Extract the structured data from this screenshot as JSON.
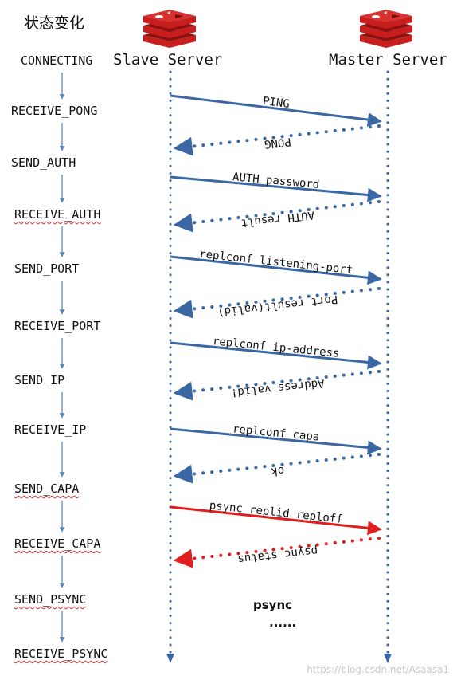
{
  "title": "状态变化",
  "slave_label": "Slave Server",
  "master_label": "Master Server",
  "states": [
    {
      "label": "CONNECTING",
      "wavy": false
    },
    {
      "label": "RECEIVE_PONG",
      "wavy": false
    },
    {
      "label": "SEND_AUTH",
      "wavy": false
    },
    {
      "label": "RECEIVE_AUTH",
      "wavy": true
    },
    {
      "label": "SEND_PORT",
      "wavy": false
    },
    {
      "label": "RECEIVE_PORT",
      "wavy": false
    },
    {
      "label": "SEND_IP",
      "wavy": false
    },
    {
      "label": "RECEIVE_IP",
      "wavy": false
    },
    {
      "label": "SEND_CAPA",
      "wavy": true
    },
    {
      "label": "RECEIVE_CAPA",
      "wavy": true
    },
    {
      "label": "SEND_PSYNC",
      "wavy": true
    },
    {
      "label": "RECEIVE_PSYNC",
      "wavy": true
    }
  ],
  "messages": [
    {
      "label": "PING",
      "direction": "to-master",
      "style": "solid",
      "color": "#3a68a4"
    },
    {
      "label": "PONG",
      "direction": "to-slave",
      "style": "dotted",
      "color": "#3a68a4"
    },
    {
      "label": "AUTH password",
      "direction": "to-master",
      "style": "solid",
      "color": "#3a68a4"
    },
    {
      "label": "AUTH result",
      "direction": "to-slave",
      "style": "dotted",
      "color": "#3a68a4"
    },
    {
      "label": "replconf listening-port",
      "direction": "to-master",
      "style": "solid",
      "color": "#3a68a4"
    },
    {
      "label": "Port result(valid)",
      "direction": "to-slave",
      "style": "dotted",
      "color": "#3a68a4"
    },
    {
      "label": "replconf ip-address",
      "direction": "to-master",
      "style": "solid",
      "color": "#3a68a4"
    },
    {
      "label": "Address valid!",
      "direction": "to-slave",
      "style": "dotted",
      "color": "#3a68a4"
    },
    {
      "label": "replconf capa",
      "direction": "to-master",
      "style": "solid",
      "color": "#3a68a4"
    },
    {
      "label": "ok",
      "direction": "to-slave",
      "style": "dotted",
      "color": "#3a68a4"
    },
    {
      "label": "psync replid reploff",
      "direction": "to-master",
      "style": "solid",
      "color": "#e01e1e"
    },
    {
      "label": "psync status",
      "direction": "to-slave",
      "style": "dotted",
      "color": "#e01e1e"
    }
  ],
  "psync_label": "psync",
  "ellipsis": "......",
  "watermark": "https://blog.csdn.net/Asaasa1",
  "colors": {
    "lifeline": "#3a68a4",
    "state_arrow": "#5b86bd",
    "redis_red": "#c81e1e"
  },
  "icons": [
    "redis-logo-icon",
    "redis-logo-icon"
  ]
}
